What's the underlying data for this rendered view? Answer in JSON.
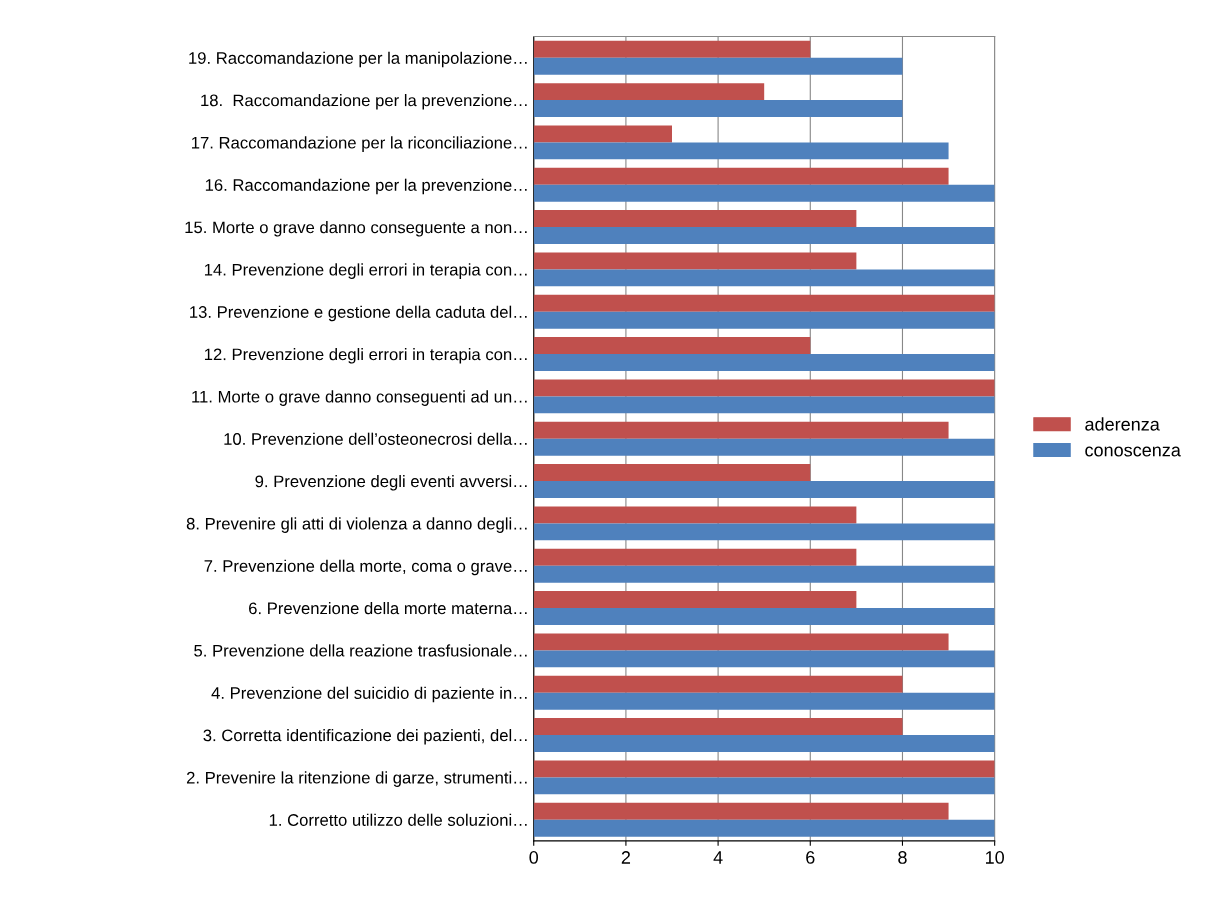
{
  "chart_data": {
    "type": "bar",
    "orientation": "horizontal",
    "categories": [
      "19. Raccomandazione per la manipolazione…",
      "18.  Raccomandazione per la prevenzione…",
      "17. Raccomandazione per la riconciliazione…",
      "16. Raccomandazione per la prevenzione…",
      "15. Morte o grave danno conseguente a non…",
      "14. Prevenzione degli errori in terapia con…",
      "13. Prevenzione e gestione della caduta del…",
      "12. Prevenzione degli errori in terapia con…",
      "11. Morte o grave danno conseguenti ad un…",
      "10. Prevenzione dell’osteonecrosi della…",
      "9. Prevenzione degli eventi avversi…",
      "8. Prevenire gli atti di violenza a danno degli…",
      "7. Prevenzione della morte, coma o grave…",
      "6. Prevenzione della morte materna…",
      "5. Prevenzione della reazione trasfusionale…",
      "4. Prevenzione del suicidio di paziente in…",
      "3. Corretta identificazione dei pazienti, del…",
      "2. Prevenire la ritenzione di garze, strumenti…",
      "1. Corretto utilizzo delle soluzioni…"
    ],
    "series": [
      {
        "name": "aderenza",
        "color": "#c0504d",
        "values": [
          6,
          5,
          3,
          9,
          7,
          7,
          10,
          6,
          10,
          9,
          6,
          7,
          7,
          7,
          9,
          8,
          8,
          10,
          9
        ]
      },
      {
        "name": "conoscenza",
        "color": "#4f81bd",
        "values": [
          8,
          8,
          9,
          10,
          10,
          10,
          10,
          10,
          10,
          10,
          10,
          10,
          10,
          10,
          10,
          10,
          10,
          10,
          10
        ]
      }
    ],
    "xlim": [
      0,
      10
    ],
    "xticks": [
      0,
      2,
      4,
      6,
      8,
      10
    ],
    "grid": "x",
    "legend": "right"
  }
}
